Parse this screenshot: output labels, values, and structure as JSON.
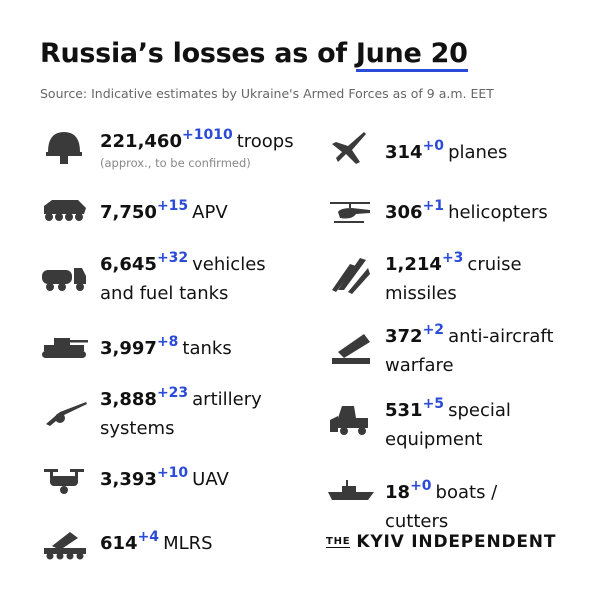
{
  "header": {
    "title_prefix": "Russia’s losses as of",
    "title_date": "June 20",
    "source": "Source: Indicative estimates by Ukraine's Armed Forces as of 9 a.m. EET"
  },
  "left": [
    {
      "value": "221,460",
      "delta": "+1010",
      "label": "troops",
      "note": "(approx., to be confirmed)"
    },
    {
      "value": "7,750",
      "delta": "+15",
      "label": "APV"
    },
    {
      "value": "6,645",
      "delta": "+32",
      "label": "vehicles and fuel tanks"
    },
    {
      "value": "3,997",
      "delta": "+8",
      "label": "tanks"
    },
    {
      "value": "3,888",
      "delta": "+23",
      "label": "artillery systems"
    },
    {
      "value": "3,393",
      "delta": "+10",
      "label": "UAV"
    },
    {
      "value": "614",
      "delta": "+4",
      "label": "MLRS"
    }
  ],
  "right": [
    {
      "value": "314",
      "delta": "+0",
      "label": "planes"
    },
    {
      "value": "306",
      "delta": "+1",
      "label": "helicopters"
    },
    {
      "value": "1,214",
      "delta": "+3",
      "label": "cruise missiles"
    },
    {
      "value": "372",
      "delta": "+2",
      "label": "anti-aircraft warfare"
    },
    {
      "value": "531",
      "delta": "+5",
      "label": "special equipment"
    },
    {
      "value": "18",
      "delta": "+0",
      "label": "boats / cutters"
    }
  ],
  "brand": {
    "prefix": "THE",
    "name": "KYIV INDEPENDENT"
  }
}
